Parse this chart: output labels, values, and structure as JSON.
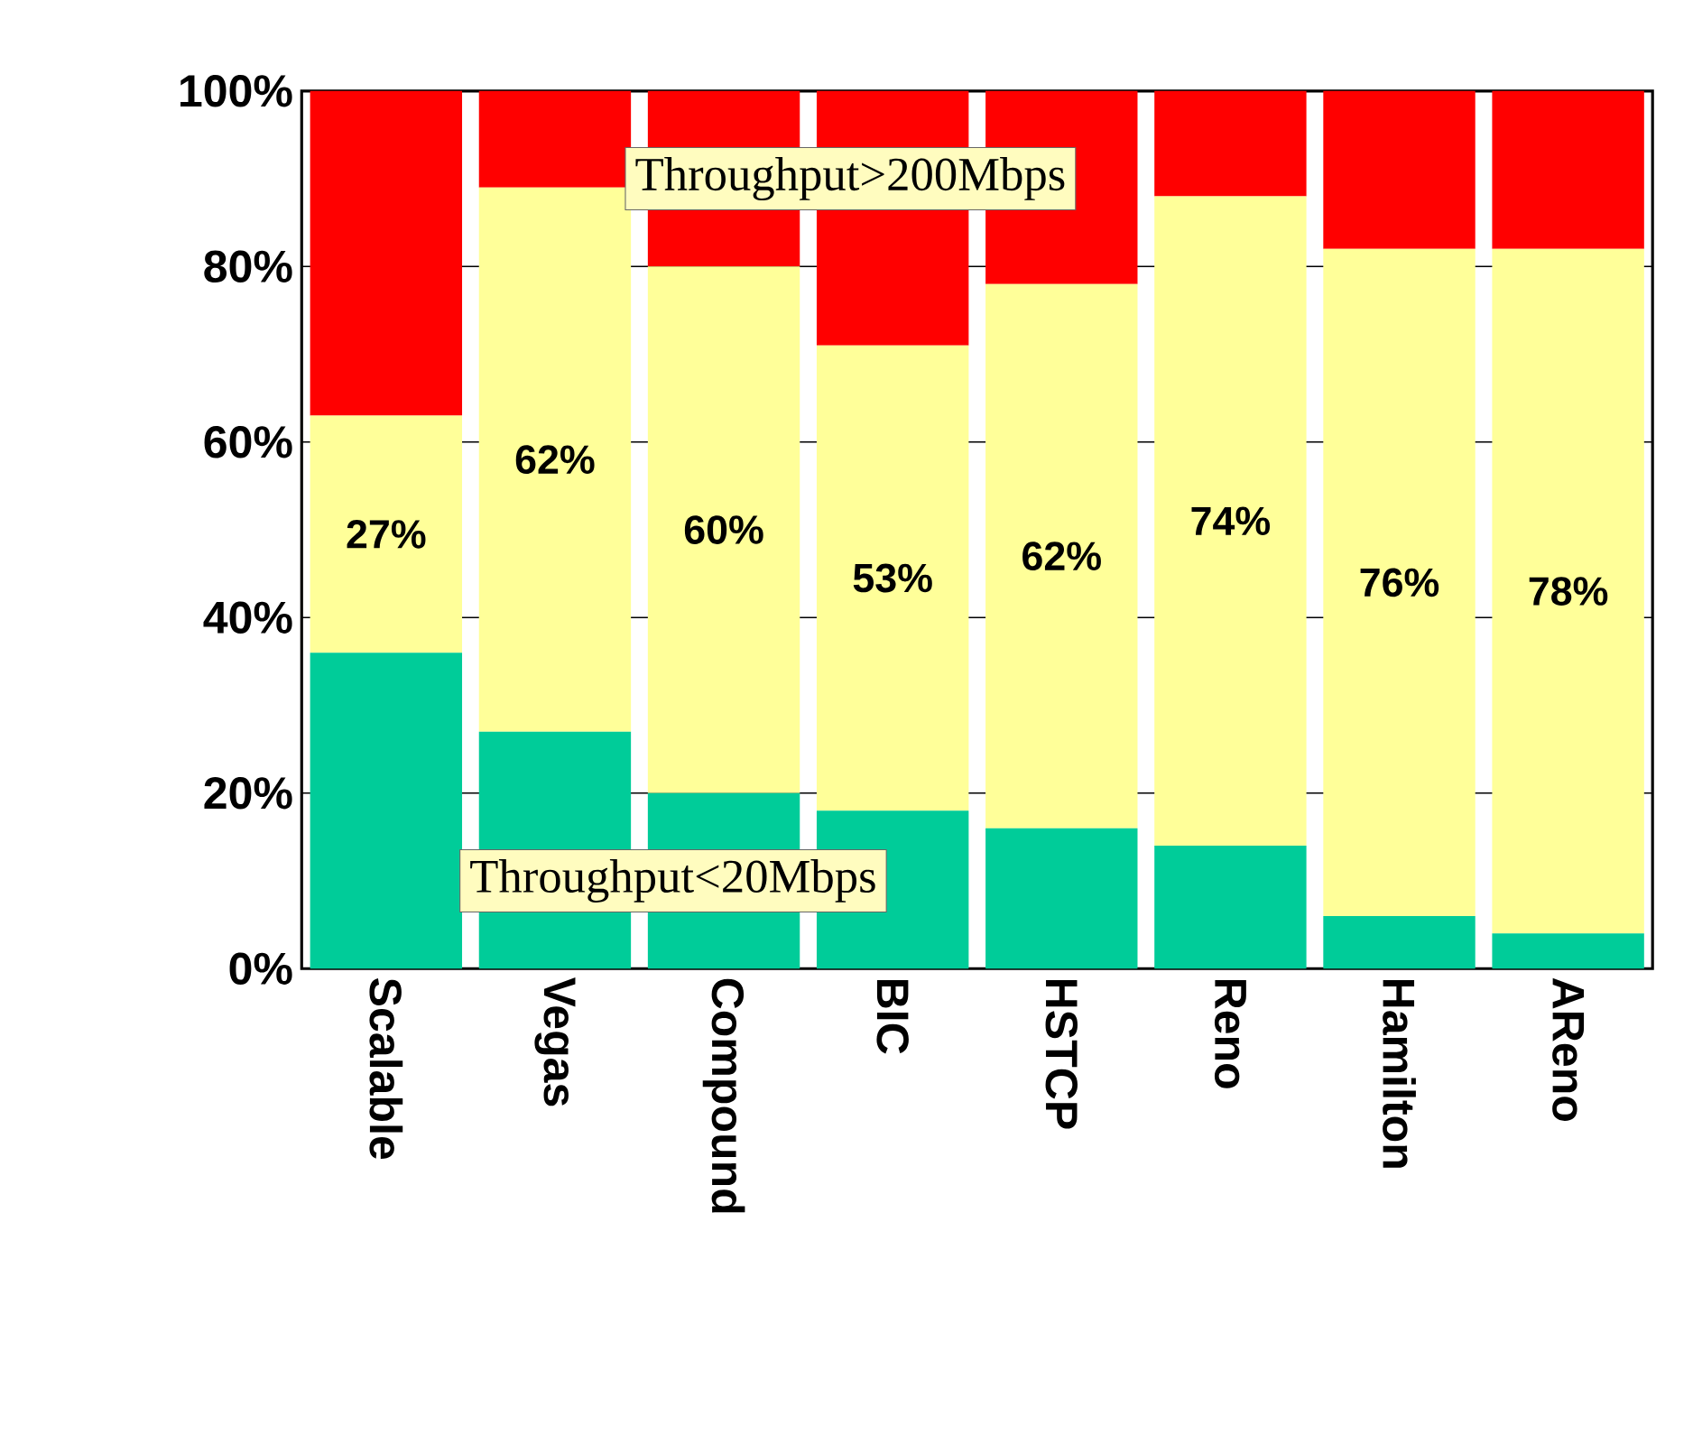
{
  "chart_data": {
    "type": "bar",
    "stacked": true,
    "categories": [
      "Scalable",
      "Vegas",
      "Compound",
      "BIC",
      "HSTCP",
      "Reno",
      "Hamilton",
      "AReno"
    ],
    "series": [
      {
        "color": "#00cc99",
        "values": [
          36,
          27,
          20,
          18,
          16,
          14,
          6,
          4
        ]
      },
      {
        "color": "#ffff99",
        "values": [
          27,
          62,
          60,
          53,
          62,
          74,
          76,
          78
        ],
        "value_labels": [
          "27%",
          "62%",
          "60%",
          "53%",
          "62%",
          "74%",
          "76%",
          "78%"
        ]
      },
      {
        "color": "#ff0000",
        "values": [
          37,
          11,
          20,
          29,
          22,
          12,
          18,
          18
        ]
      }
    ],
    "ylim": [
      0,
      100
    ],
    "yticks": [
      {
        "value": 0,
        "label": "0%"
      },
      {
        "value": 20,
        "label": "20%"
      },
      {
        "value": 40,
        "label": "40%"
      },
      {
        "value": 60,
        "label": "60%"
      },
      {
        "value": 80,
        "label": "80%"
      },
      {
        "value": 100,
        "label": "100%"
      }
    ],
    "grid": "y",
    "annotations": [
      "Throughput>200Mbps",
      "Throughput<20Mbps"
    ]
  }
}
